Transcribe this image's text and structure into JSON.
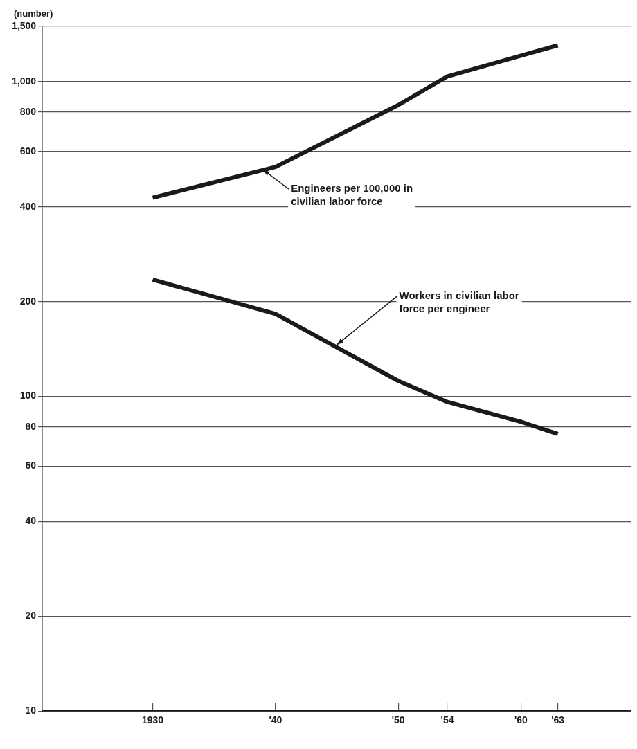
{
  "chart_data": {
    "type": "line",
    "ylabel": "(number)",
    "log": "y",
    "grid": "y",
    "legend": false,
    "marker": "none",
    "line_style": "solid",
    "x": [
      1930,
      1940,
      1950,
      1954,
      1960,
      1963
    ],
    "xlim": [
      1921,
      1969
    ],
    "xticks": [
      1930,
      {
        "value": 1940,
        "label": "'40"
      },
      {
        "value": 1950,
        "label": "'50"
      },
      {
        "value": 1954,
        "label": "'54"
      },
      {
        "value": 1960,
        "label": "'60"
      },
      {
        "value": 1963,
        "label": "'63"
      }
    ],
    "ylim": [
      10,
      1500
    ],
    "yticks": [
      10,
      20,
      40,
      60,
      80,
      100,
      200,
      400,
      600,
      800,
      {
        "value": 1000,
        "label": "1,000"
      },
      {
        "value": 1500,
        "label": "1,500"
      }
    ],
    "series": [
      {
        "color": "#1a1a1a",
        "values": [
          428,
          536,
          843,
          1040,
          1210,
          1305
        ]
      },
      {
        "color": "#1a1a1a",
        "values": [
          235,
          183,
          112,
          96,
          83,
          76
        ]
      }
    ],
    "annotations": [
      {
        "text": "Engineers per 100,000 in civilian labor force",
        "x": 1939,
        "y": 525
      },
      {
        "text": "Workers in civilian labor force per engineer",
        "x": 1945,
        "y": 146
      }
    ]
  }
}
